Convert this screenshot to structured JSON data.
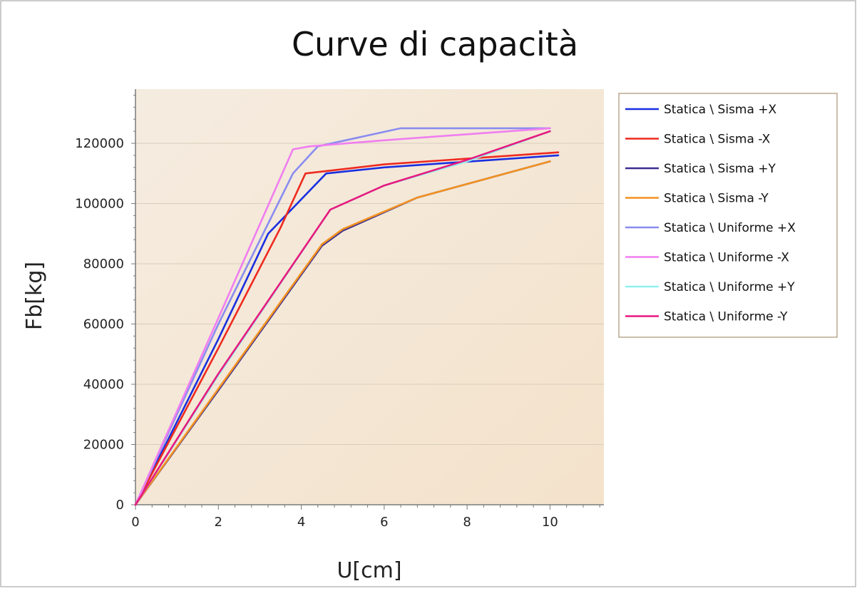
{
  "chart_data": {
    "type": "line",
    "title": "Curve di capacità",
    "xlabel": "U[cm]",
    "ylabel": "Fb[kg]",
    "xlim": [
      0,
      11.3
    ],
    "ylim": [
      0,
      138000
    ],
    "x_ticks": [
      0,
      2,
      4,
      6,
      8,
      10
    ],
    "y_ticks": [
      0,
      20000,
      40000,
      60000,
      80000,
      100000,
      120000
    ],
    "grid": "horizontal",
    "legend_position": "right",
    "colors": {
      "plot_bg_start": "#f5ece0",
      "plot_bg_end": "#f4e2cb",
      "grid": "#d8cdbc",
      "axis": "#7a7a7a",
      "legend_border": "#b9a98f"
    },
    "series": [
      {
        "name": "Statica \\ Sisma +X",
        "color": "#1a2fe0",
        "x": [
          0,
          2.0,
          3.2,
          4.6,
          6.0,
          10.2
        ],
        "y": [
          0,
          55000,
          90000,
          110000,
          112000,
          116000
        ]
      },
      {
        "name": "Statica \\ Sisma -X",
        "color": "#ee2a1f",
        "x": [
          0,
          2.0,
          3.5,
          4.1,
          6.0,
          10.2
        ],
        "y": [
          0,
          52000,
          92000,
          110000,
          113000,
          117000
        ]
      },
      {
        "name": "Statica \\ Sisma +Y",
        "color": "#3a2f90",
        "x": [
          0,
          2.0,
          4.5,
          5.0,
          6.8,
          10.0
        ],
        "y": [
          0,
          38000,
          86000,
          91000,
          102000,
          114000
        ]
      },
      {
        "name": "Statica \\ Sisma -Y",
        "color": "#f39221",
        "x": [
          0,
          2.0,
          4.5,
          5.0,
          6.8,
          10.0
        ],
        "y": [
          0,
          38500,
          86500,
          91500,
          102000,
          114000
        ]
      },
      {
        "name": "Statica \\ Uniforme +X",
        "color": "#8a8cf0",
        "x": [
          0,
          2.0,
          3.8,
          4.4,
          6.4,
          10.0
        ],
        "y": [
          0,
          60000,
          110000,
          119000,
          125000,
          125000
        ]
      },
      {
        "name": "Statica \\ Uniforme -X",
        "color": "#f07ef0",
        "x": [
          0,
          2.0,
          3.8,
          4.2,
          6.0,
          10.0
        ],
        "y": [
          0,
          62000,
          118000,
          119000,
          121000,
          125000
        ]
      },
      {
        "name": "Statica \\ Uniforme +Y",
        "color": "#8ff0f0",
        "x": [
          0,
          2.0,
          4.7,
          6.0,
          8.0,
          10.0
        ],
        "y": [
          0,
          43000,
          98000,
          106000,
          114000,
          124000
        ]
      },
      {
        "name": "Statica \\ Uniforme -Y",
        "color": "#e8197f",
        "x": [
          0,
          2.0,
          4.7,
          6.0,
          8.0,
          10.0
        ],
        "y": [
          0,
          43500,
          98000,
          106000,
          114500,
          124000
        ]
      }
    ]
  }
}
